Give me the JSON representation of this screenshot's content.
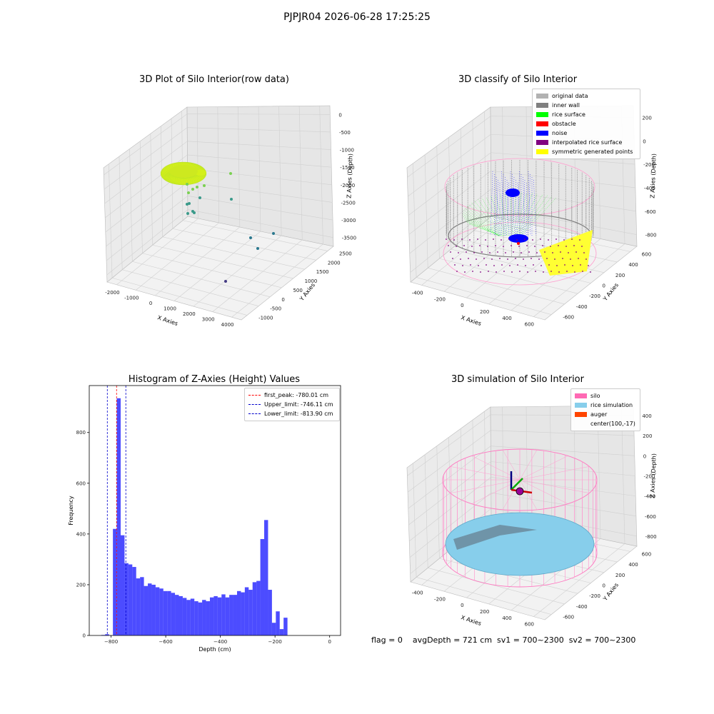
{
  "suptitle": "PJPJR04 2026-06-28 17:25:25",
  "status_line": "flag = 0    avgDepth = 721 cm  sv1 = 700~2300  sv2 = 700~2300",
  "chart_data": [
    {
      "type": "scatter",
      "projection": "3d",
      "title": "3D Plot of Silo Interior(row data)",
      "xlabel": "X Axies",
      "ylabel": "Y Axies",
      "zlabel": "Z Axies (Depth)",
      "xticks": [
        "-2000",
        "-1000",
        "0",
        "1000",
        "2000",
        "3000",
        "4000"
      ],
      "yticks": [
        "-1000",
        "-500",
        "0",
        "500",
        "1000",
        "1500",
        "2000",
        "2500"
      ],
      "zticks": [
        "0",
        "-500",
        "-1000",
        "-1500",
        "-2000",
        "-2500",
        "-3000",
        "-3500"
      ],
      "xlim": [
        -2200,
        4200
      ],
      "ylim": [
        -1100,
        2600
      ],
      "zlim": [
        -3800,
        100
      ],
      "grid": true,
      "colormap": "viridis"
    },
    {
      "type": "scatter",
      "projection": "3d",
      "title": "3D classify of Silo Interior",
      "xlabel": "X Axies",
      "ylabel": "Y Axies",
      "zlabel": "Z Axies (Depth)",
      "xticks": [
        "-400",
        "-200",
        "0",
        "200",
        "400",
        "600"
      ],
      "yticks": [
        "-600",
        "-400",
        "-200",
        "0",
        "200",
        "400",
        "600"
      ],
      "zticks": [
        "200",
        "0",
        "-200",
        "-400",
        "-600",
        "-800"
      ],
      "grid": true,
      "legend_position": "top-right",
      "legend": [
        {
          "label": "original data",
          "color": "#b2b2b2"
        },
        {
          "label": "inner wall",
          "color": "#808080"
        },
        {
          "label": "rice surface",
          "color": "#00ff00"
        },
        {
          "label": "obstacle",
          "color": "#ff0000"
        },
        {
          "label": "noise",
          "color": "#0000ff"
        },
        {
          "label": "interpolated rice surface",
          "color": "#800080"
        },
        {
          "label": "symmetric generated points",
          "color": "#ffff00"
        }
      ]
    },
    {
      "type": "bar",
      "title": "Histogram of Z-Axies (Height) Values",
      "xlabel": "Depth (cm)",
      "ylabel": "Frequency",
      "xlim": [
        -880,
        40
      ],
      "ylim": [
        0,
        985
      ],
      "xticks": [
        -800,
        -600,
        -400,
        -200,
        0
      ],
      "xtick_labels": [
        "−800",
        "−600",
        "−400",
        "−200",
        "0"
      ],
      "yticks": [
        0,
        200,
        400,
        600,
        800
      ],
      "bar_color": "#0000ff",
      "bin_width": 14.2,
      "bins_left": [
        -836,
        -821.8,
        -807.6,
        -793.4,
        -779.2,
        -765,
        -750.8,
        -736.6,
        -722.4,
        -708.2,
        -694,
        -679.8,
        -665.6,
        -651.4,
        -637.2,
        -623,
        -608.8,
        -594.6,
        -580.4,
        -566.2,
        -552,
        -537.8,
        -523.6,
        -509.4,
        -495.2,
        -481,
        -466.8,
        -452.6,
        -438.4,
        -424.2,
        -410,
        -395.8,
        -381.6,
        -367.4,
        -353.2,
        -339,
        -324.8,
        -310.6,
        -296.4,
        -282.2,
        -268,
        -253.8,
        -239.6,
        -225.4,
        -211.2,
        -197,
        -182.8,
        -168.6,
        -154.4,
        -140.2,
        -126,
        -111.8,
        -97.6,
        -83.4,
        -69.2,
        -55,
        -40.8,
        -26.6,
        -12.4
      ],
      "values": [
        2,
        5,
        0,
        420,
        935,
        395,
        285,
        280,
        270,
        225,
        230,
        195,
        205,
        200,
        190,
        185,
        175,
        175,
        168,
        160,
        155,
        148,
        140,
        145,
        135,
        130,
        140,
        135,
        150,
        155,
        150,
        162,
        150,
        160,
        160,
        175,
        170,
        190,
        180,
        210,
        215,
        380,
        455,
        180,
        50,
        95,
        25,
        70,
        0,
        0,
        0,
        0,
        0,
        0,
        0,
        0,
        0,
        0,
        0
      ],
      "vlines": [
        {
          "label": "first_peak: -780.01 cm",
          "x": -780.01,
          "color": "#ff0000"
        },
        {
          "label": "Upper_limit: -746.11 cm",
          "x": -746.11,
          "color": "#0000cc"
        },
        {
          "label": "Lower_limit: -813.90 cm",
          "x": -813.9,
          "color": "#0000cc"
        }
      ],
      "legend_position": "top-right"
    },
    {
      "type": "surface",
      "projection": "3d",
      "title": "3D simulation of Silo Interior",
      "xlabel": "X Axies",
      "ylabel": "Y Axies",
      "zlabel": "Z Axies (Depth)",
      "xticks": [
        "-400",
        "-200",
        "0",
        "200",
        "400",
        "600"
      ],
      "yticks": [
        "-600",
        "-400",
        "-200",
        "0",
        "200",
        "400",
        "600"
      ],
      "zticks": [
        "400",
        "200",
        "0",
        "-200",
        "-400",
        "-600",
        "-800"
      ],
      "grid": true,
      "legend_position": "top-right",
      "legend": [
        {
          "label": "silo",
          "color": "#ff69b4"
        },
        {
          "label": "rice simulation",
          "color": "#87ceeb"
        },
        {
          "label": "auger",
          "color": "#ff4500"
        },
        {
          "label": "center(100,-17)",
          "color": ""
        }
      ]
    }
  ]
}
